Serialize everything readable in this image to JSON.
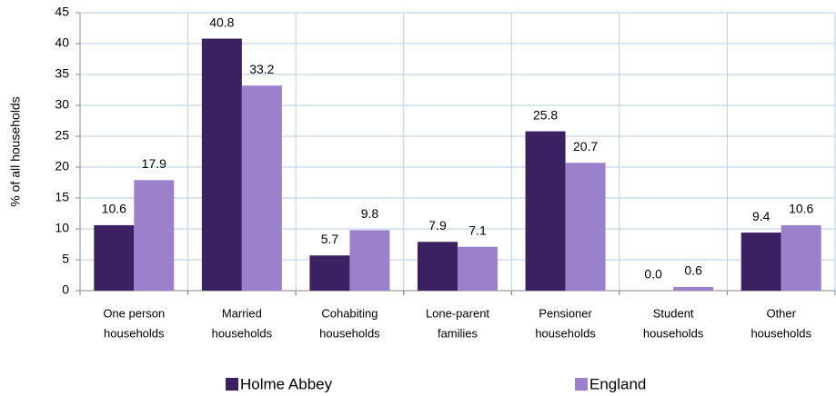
{
  "chart_data": {
    "type": "bar",
    "y_label": "% of all households",
    "categories": [
      [
        "One person",
        "households"
      ],
      [
        "Married",
        "households"
      ],
      [
        "Cohabiting",
        "households"
      ],
      [
        "Lone-parent",
        "families"
      ],
      [
        "Pensioner",
        "households"
      ],
      [
        "Student",
        "households"
      ],
      [
        "Other",
        "households"
      ]
    ],
    "series": [
      {
        "name": "Holme Abbey",
        "color": "#3b2162",
        "values": [
          10.6,
          40.8,
          5.7,
          7.9,
          25.8,
          0,
          9.4
        ],
        "value_labels": [
          "10.6",
          "40.8",
          "5.7",
          "7.9",
          "25.8",
          "0.0",
          "9.4"
        ]
      },
      {
        "name": "England",
        "color": "#9b80cb",
        "values": [
          17.9,
          33.2,
          9.8,
          7.1,
          20.7,
          0.6,
          10.6
        ],
        "value_labels": [
          "17.9",
          "33.2",
          "9.8",
          "7.1",
          "20.7",
          "0.6",
          "10.6"
        ]
      }
    ],
    "ylim": [
      0,
      45
    ],
    "yticks": [
      0,
      5,
      10,
      15,
      20,
      25,
      30,
      35,
      40,
      45
    ],
    "grid": true,
    "legend": "bottom"
  }
}
